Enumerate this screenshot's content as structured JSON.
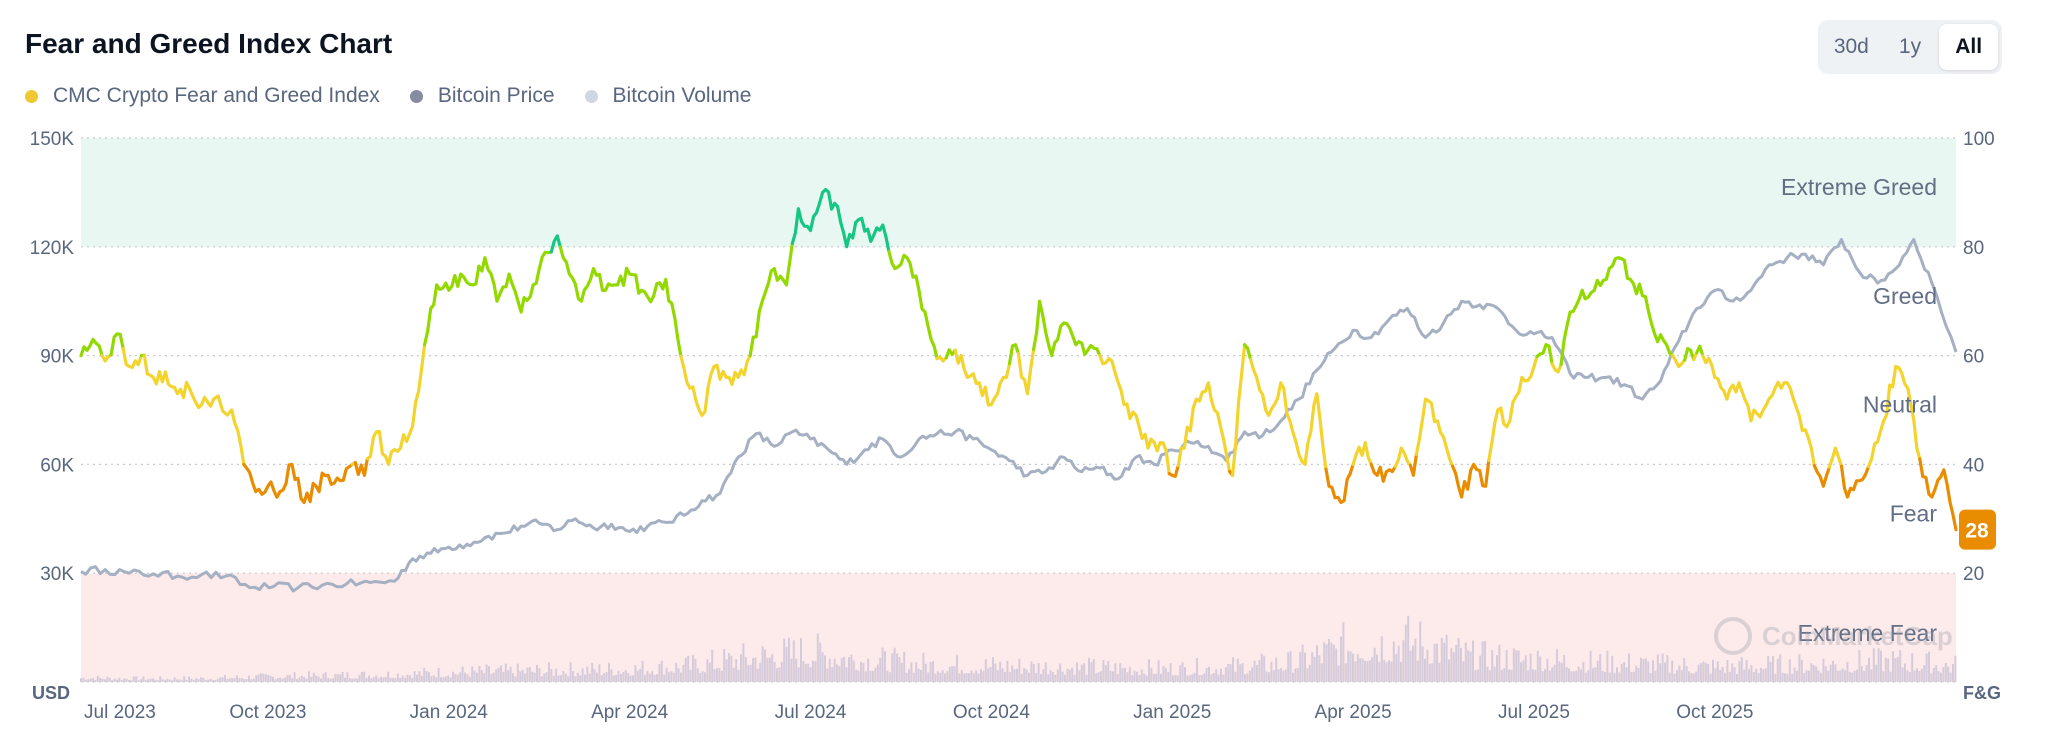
{
  "header": {
    "title": "Fear and Greed Index Chart"
  },
  "range": {
    "options": [
      "30d",
      "1y",
      "All"
    ],
    "active": "All"
  },
  "legend": [
    {
      "label": "CMC Crypto Fear and Greed Index",
      "color": "#f0c832"
    },
    {
      "label": "Bitcoin Price",
      "color": "#858ca2"
    },
    {
      "label": "Bitcoin Volume",
      "color": "#cfd6e4"
    }
  ],
  "watermark": "CoinMarketCap",
  "current_badge": {
    "value": "28",
    "color": "#ea8c00"
  },
  "colors": {
    "extreme_fear": "#ea3943",
    "fear": "#ea8c00",
    "neutral": "#f3d42f",
    "greed": "#93d900",
    "extreme_greed": "#16c784",
    "price": "#a6b0c3",
    "volume": "#d6cbdb",
    "greed_band": "#e8f7f1",
    "fear_band": "#fdeaea"
  },
  "chart_data": {
    "type": "line",
    "title": "Fear and Greed Index Chart",
    "left_axis": {
      "label": "USD",
      "ticks": [
        "150K",
        "120K",
        "90K",
        "60K",
        "30K"
      ],
      "range": [
        0,
        150000
      ]
    },
    "right_axis": {
      "label": "F&G",
      "ticks": [
        "100",
        "80",
        "60",
        "40",
        "20"
      ],
      "range": [
        0,
        100
      ]
    },
    "x_tick_labels": [
      "Jul 2023",
      "Oct 2023",
      "Jan 2024",
      "Apr 2024",
      "Jul 2024",
      "Oct 2024",
      "Jan 2025",
      "Apr 2025",
      "Jul 2025",
      "Oct 2025"
    ],
    "x_tick_months": [
      0,
      3,
      6,
      9,
      12,
      15,
      18,
      21,
      24,
      27
    ],
    "month_span": [
      -0.1,
      31.0
    ],
    "zones": [
      {
        "label": "Extreme Greed",
        "y": 91
      },
      {
        "label": "Greed",
        "y": 71
      },
      {
        "label": "Neutral",
        "y": 51
      },
      {
        "label": "Fear",
        "y": 31
      },
      {
        "label": "Extreme Fear",
        "y": 9
      }
    ],
    "bands": {
      "extreme_greed": [
        80,
        100
      ],
      "extreme_fear": [
        0,
        20
      ]
    },
    "series": [
      {
        "name": "CMC Crypto Fear and Greed Index",
        "axis": "right",
        "points": [
          [
            -0.1,
            60
          ],
          [
            0.1,
            63
          ],
          [
            0.3,
            59
          ],
          [
            0.5,
            64
          ],
          [
            0.7,
            58
          ],
          [
            0.9,
            60
          ],
          [
            1.1,
            56
          ],
          [
            1.3,
            57
          ],
          [
            1.5,
            53
          ],
          [
            1.7,
            54
          ],
          [
            1.9,
            51
          ],
          [
            2.1,
            52
          ],
          [
            2.4,
            50
          ],
          [
            2.6,
            40
          ],
          [
            2.8,
            35
          ],
          [
            3.0,
            36
          ],
          [
            3.2,
            35
          ],
          [
            3.4,
            40
          ],
          [
            3.6,
            33
          ],
          [
            3.8,
            36
          ],
          [
            4.0,
            38
          ],
          [
            4.2,
            37
          ],
          [
            4.4,
            40
          ],
          [
            4.6,
            38
          ],
          [
            4.8,
            46
          ],
          [
            5.0,
            40
          ],
          [
            5.2,
            43
          ],
          [
            5.4,
            47
          ],
          [
            5.6,
            62
          ],
          [
            5.8,
            73
          ],
          [
            6.0,
            72
          ],
          [
            6.2,
            75
          ],
          [
            6.4,
            73
          ],
          [
            6.6,
            78
          ],
          [
            6.8,
            70
          ],
          [
            7.0,
            75
          ],
          [
            7.2,
            68
          ],
          [
            7.4,
            73
          ],
          [
            7.6,
            79
          ],
          [
            7.8,
            82
          ],
          [
            8.0,
            75
          ],
          [
            8.2,
            70
          ],
          [
            8.4,
            76
          ],
          [
            8.6,
            72
          ],
          [
            8.8,
            73
          ],
          [
            9.0,
            75
          ],
          [
            9.2,
            72
          ],
          [
            9.4,
            71
          ],
          [
            9.6,
            74
          ],
          [
            9.8,
            63
          ],
          [
            10.0,
            54
          ],
          [
            10.2,
            49
          ],
          [
            10.4,
            58
          ],
          [
            10.6,
            56
          ],
          [
            10.8,
            56
          ],
          [
            11.0,
            60
          ],
          [
            11.2,
            70
          ],
          [
            11.4,
            76
          ],
          [
            11.6,
            73
          ],
          [
            11.8,
            87
          ],
          [
            12.0,
            83
          ],
          [
            12.2,
            90
          ],
          [
            12.4,
            88
          ],
          [
            12.6,
            80
          ],
          [
            12.8,
            85
          ],
          [
            13.0,
            81
          ],
          [
            13.2,
            84
          ],
          [
            13.4,
            76
          ],
          [
            13.6,
            78
          ],
          [
            13.8,
            72
          ],
          [
            14.0,
            63
          ],
          [
            14.2,
            59
          ],
          [
            14.4,
            61
          ],
          [
            14.6,
            56
          ],
          [
            14.8,
            55
          ],
          [
            15.0,
            51
          ],
          [
            15.2,
            56
          ],
          [
            15.4,
            62
          ],
          [
            15.6,
            53
          ],
          [
            15.8,
            70
          ],
          [
            16.0,
            60
          ],
          [
            16.2,
            66
          ],
          [
            16.4,
            62
          ],
          [
            16.6,
            61
          ],
          [
            16.8,
            60
          ],
          [
            17.0,
            59
          ],
          [
            17.2,
            51
          ],
          [
            17.4,
            49
          ],
          [
            17.6,
            43
          ],
          [
            17.8,
            44
          ],
          [
            18.0,
            38
          ],
          [
            18.2,
            43
          ],
          [
            18.4,
            52
          ],
          [
            18.6,
            55
          ],
          [
            18.8,
            47
          ],
          [
            19.0,
            38
          ],
          [
            19.2,
            62
          ],
          [
            19.4,
            56
          ],
          [
            19.6,
            49
          ],
          [
            19.8,
            55
          ],
          [
            20.0,
            46
          ],
          [
            20.2,
            40
          ],
          [
            20.4,
            53
          ],
          [
            20.6,
            36
          ],
          [
            20.8,
            33
          ],
          [
            21.0,
            40
          ],
          [
            21.2,
            44
          ],
          [
            21.4,
            38
          ],
          [
            21.6,
            39
          ],
          [
            21.8,
            43
          ],
          [
            22.0,
            38
          ],
          [
            22.2,
            52
          ],
          [
            22.4,
            48
          ],
          [
            22.6,
            41
          ],
          [
            22.8,
            34
          ],
          [
            23.0,
            40
          ],
          [
            23.2,
            36
          ],
          [
            23.4,
            50
          ],
          [
            23.6,
            48
          ],
          [
            23.8,
            56
          ],
          [
            24.0,
            58
          ],
          [
            24.2,
            62
          ],
          [
            24.4,
            57
          ],
          [
            24.6,
            68
          ],
          [
            24.8,
            72
          ],
          [
            25.0,
            72
          ],
          [
            25.2,
            74
          ],
          [
            25.4,
            78
          ],
          [
            25.6,
            74
          ],
          [
            25.8,
            71
          ],
          [
            26.0,
            64
          ],
          [
            26.2,
            62
          ],
          [
            26.4,
            58
          ],
          [
            26.6,
            61
          ],
          [
            26.8,
            60
          ],
          [
            27.0,
            56
          ],
          [
            27.2,
            52
          ],
          [
            27.4,
            55
          ],
          [
            27.6,
            48
          ],
          [
            27.8,
            50
          ],
          [
            28.0,
            54
          ],
          [
            28.2,
            55
          ],
          [
            28.4,
            49
          ],
          [
            28.6,
            43
          ],
          [
            28.8,
            36
          ],
          [
            29.0,
            43
          ],
          [
            29.2,
            34
          ],
          [
            29.4,
            37
          ],
          [
            29.6,
            41
          ],
          [
            29.8,
            48
          ],
          [
            30.0,
            58
          ],
          [
            30.2,
            54
          ],
          [
            30.4,
            41
          ],
          [
            30.6,
            34
          ],
          [
            30.8,
            39
          ],
          [
            31.0,
            28
          ]
        ]
      },
      {
        "name": "Bitcoin Price",
        "axis": "left",
        "points": [
          [
            -0.1,
            30500
          ],
          [
            0.3,
            31000
          ],
          [
            0.7,
            30000
          ],
          [
            1.1,
            29800
          ],
          [
            1.5,
            29200
          ],
          [
            1.9,
            29600
          ],
          [
            2.3,
            29200
          ],
          [
            2.7,
            26000
          ],
          [
            3.1,
            26400
          ],
          [
            3.5,
            26000
          ],
          [
            3.9,
            26700
          ],
          [
            4.3,
            27000
          ],
          [
            4.7,
            27400
          ],
          [
            5.1,
            27800
          ],
          [
            5.4,
            34000
          ],
          [
            5.7,
            35500
          ],
          [
            6.0,
            37200
          ],
          [
            6.3,
            38000
          ],
          [
            6.6,
            39800
          ],
          [
            6.9,
            41000
          ],
          [
            7.2,
            43000
          ],
          [
            7.5,
            43800
          ],
          [
            7.8,
            42000
          ],
          [
            8.1,
            45000
          ],
          [
            8.4,
            42500
          ],
          [
            8.7,
            43500
          ],
          [
            9.0,
            41500
          ],
          [
            9.3,
            43000
          ],
          [
            9.6,
            44000
          ],
          [
            9.9,
            46000
          ],
          [
            10.2,
            50000
          ],
          [
            10.5,
            52000
          ],
          [
            10.8,
            62000
          ],
          [
            11.1,
            68500
          ],
          [
            11.4,
            65000
          ],
          [
            11.7,
            69000
          ],
          [
            12.0,
            67000
          ],
          [
            12.3,
            64000
          ],
          [
            12.6,
            60000
          ],
          [
            12.9,
            64000
          ],
          [
            13.2,
            67000
          ],
          [
            13.5,
            62000
          ],
          [
            13.8,
            67000
          ],
          [
            14.1,
            68500
          ],
          [
            14.4,
            69000
          ],
          [
            14.7,
            67000
          ],
          [
            15.0,
            64000
          ],
          [
            15.3,
            61000
          ],
          [
            15.6,
            57000
          ],
          [
            15.9,
            58000
          ],
          [
            16.2,
            62000
          ],
          [
            16.5,
            58000
          ],
          [
            16.8,
            59000
          ],
          [
            17.1,
            56000
          ],
          [
            17.4,
            62000
          ],
          [
            17.7,
            60000
          ],
          [
            18.0,
            64000
          ],
          [
            18.3,
            66000
          ],
          [
            18.6,
            65000
          ],
          [
            18.9,
            61000
          ],
          [
            19.2,
            69000
          ],
          [
            19.5,
            68000
          ],
          [
            19.8,
            72000
          ],
          [
            20.1,
            78000
          ],
          [
            20.4,
            86000
          ],
          [
            20.7,
            92000
          ],
          [
            21.0,
            97000
          ],
          [
            21.3,
            95000
          ],
          [
            21.6,
            100000
          ],
          [
            21.9,
            103000
          ],
          [
            22.2,
            95000
          ],
          [
            22.5,
            99000
          ],
          [
            22.8,
            105000
          ],
          [
            23.1,
            104000
          ],
          [
            23.4,
            103000
          ],
          [
            23.7,
            97000
          ],
          [
            24.0,
            96000
          ],
          [
            24.3,
            95000
          ],
          [
            24.6,
            85000
          ],
          [
            24.9,
            84000
          ],
          [
            25.2,
            84000
          ],
          [
            25.5,
            82000
          ],
          [
            25.8,
            78000
          ],
          [
            26.1,
            83000
          ],
          [
            26.4,
            94000
          ],
          [
            26.7,
            103000
          ],
          [
            27.0,
            108000
          ],
          [
            27.3,
            105000
          ],
          [
            27.6,
            108000
          ],
          [
            27.9,
            115000
          ],
          [
            28.2,
            117000
          ],
          [
            28.5,
            118000
          ],
          [
            28.8,
            115000
          ],
          [
            29.1,
            122000
          ],
          [
            29.4,
            113000
          ],
          [
            29.7,
            110000
          ],
          [
            30.0,
            114000
          ],
          [
            30.3,
            122000
          ],
          [
            30.6,
            110000
          ],
          [
            31.0,
            91000
          ]
        ]
      },
      {
        "name": "Bitcoin Volume",
        "axis": "relative",
        "points": [
          [
            -0.1,
            0.08
          ],
          [
            1,
            0.06
          ],
          [
            2,
            0.07
          ],
          [
            3,
            0.1
          ],
          [
            4,
            0.12
          ],
          [
            5,
            0.14
          ],
          [
            6,
            0.18
          ],
          [
            7,
            0.2
          ],
          [
            8,
            0.22
          ],
          [
            9,
            0.24
          ],
          [
            10,
            0.3
          ],
          [
            11,
            0.45
          ],
          [
            12,
            0.55
          ],
          [
            13,
            0.4
          ],
          [
            14,
            0.32
          ],
          [
            15,
            0.3
          ],
          [
            16,
            0.28
          ],
          [
            17,
            0.26
          ],
          [
            18,
            0.24
          ],
          [
            19,
            0.28
          ],
          [
            20,
            0.35
          ],
          [
            21,
            0.7
          ],
          [
            22,
            0.75
          ],
          [
            23,
            0.45
          ],
          [
            24,
            0.42
          ],
          [
            25,
            0.35
          ],
          [
            26,
            0.32
          ],
          [
            27,
            0.28
          ],
          [
            28,
            0.3
          ],
          [
            29,
            0.34
          ],
          [
            30,
            0.38
          ],
          [
            31,
            0.3
          ]
        ]
      }
    ]
  }
}
